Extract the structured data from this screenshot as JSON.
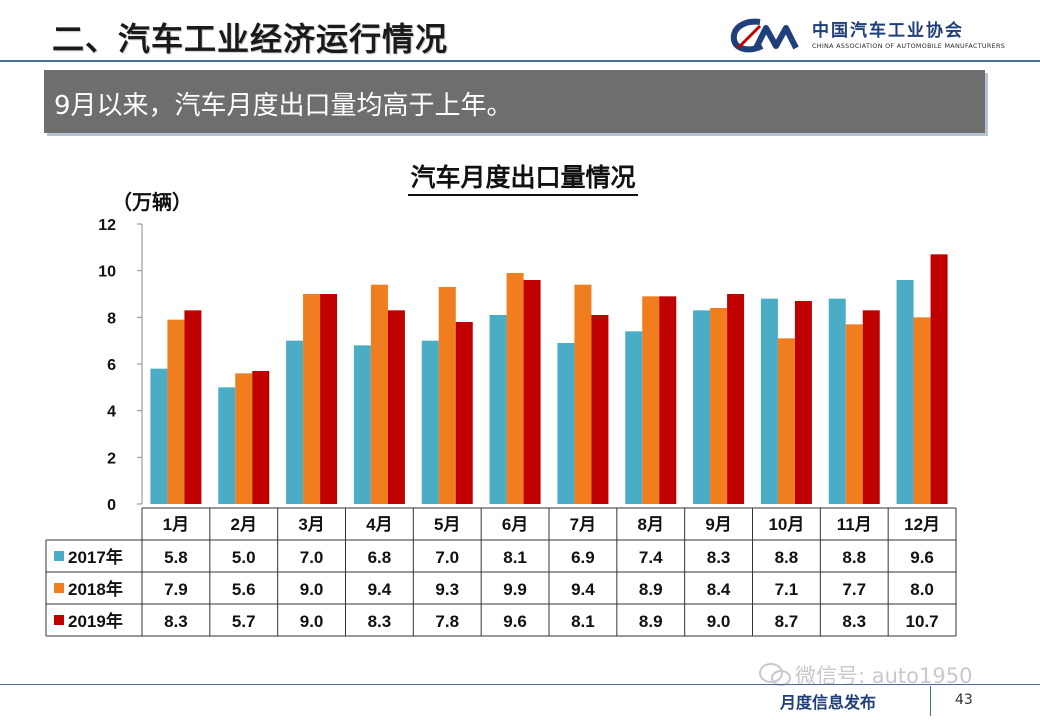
{
  "header": {
    "title": "二、汽车工业经济运行情况",
    "logo_name": "中国汽车工业协会",
    "logo_en": "CHINA ASSOCIATION OF AUTOMOBILE MANUFACTURERS",
    "logo_icon": "caam-logo"
  },
  "subtitle": "9月以来，汽车月度出口量均高于上年。",
  "colors": {
    "2017": "#4bacc6",
    "2018": "#f07d1e",
    "2019": "#c00000",
    "header_rule": "#4a6f9c",
    "bar_bg": "#6e6e6e"
  },
  "chart_data": {
    "type": "bar",
    "title": "汽车月度出口量情况",
    "ylabel": "（万辆）",
    "ylim": [
      0,
      12
    ],
    "yticks": [
      "0",
      "2",
      "4",
      "6",
      "8",
      "10",
      "12"
    ],
    "categories": [
      "1月",
      "2月",
      "3月",
      "4月",
      "5月",
      "6月",
      "7月",
      "8月",
      "9月",
      "10月",
      "11月",
      "12月"
    ],
    "series": [
      {
        "name": "2017年",
        "values": [
          5.8,
          5.0,
          7.0,
          6.8,
          7.0,
          8.1,
          6.9,
          7.4,
          8.3,
          8.8,
          8.8,
          9.6
        ],
        "labels": [
          "5.8",
          "5.0",
          "7.0",
          "6.8",
          "7.0",
          "8.1",
          "6.9",
          "7.4",
          "8.3",
          "8.8",
          "8.8",
          "9.6"
        ]
      },
      {
        "name": "2018年",
        "values": [
          7.9,
          5.6,
          9.0,
          9.4,
          9.3,
          9.9,
          9.4,
          8.9,
          8.4,
          7.1,
          7.7,
          8.0
        ],
        "labels": [
          "7.9",
          "5.6",
          "9.0",
          "9.4",
          "9.3",
          "9.9",
          "9.4",
          "8.9",
          "8.4",
          "7.1",
          "7.7",
          "8.0"
        ]
      },
      {
        "name": "2019年",
        "values": [
          8.3,
          5.7,
          9.0,
          8.3,
          7.8,
          9.6,
          8.1,
          8.9,
          9.0,
          8.7,
          8.3,
          10.7
        ],
        "labels": [
          "8.3",
          "5.7",
          "9.0",
          "8.3",
          "7.8",
          "9.6",
          "8.1",
          "8.9",
          "9.0",
          "8.7",
          "8.3",
          "10.7"
        ]
      }
    ],
    "grid": false,
    "legend": "in-table-left"
  },
  "footer": {
    "watermark": "微信号: auto1950",
    "watermark_icon": "wechat-icon",
    "left_text": "月度信息发布",
    "page_number": "43"
  }
}
